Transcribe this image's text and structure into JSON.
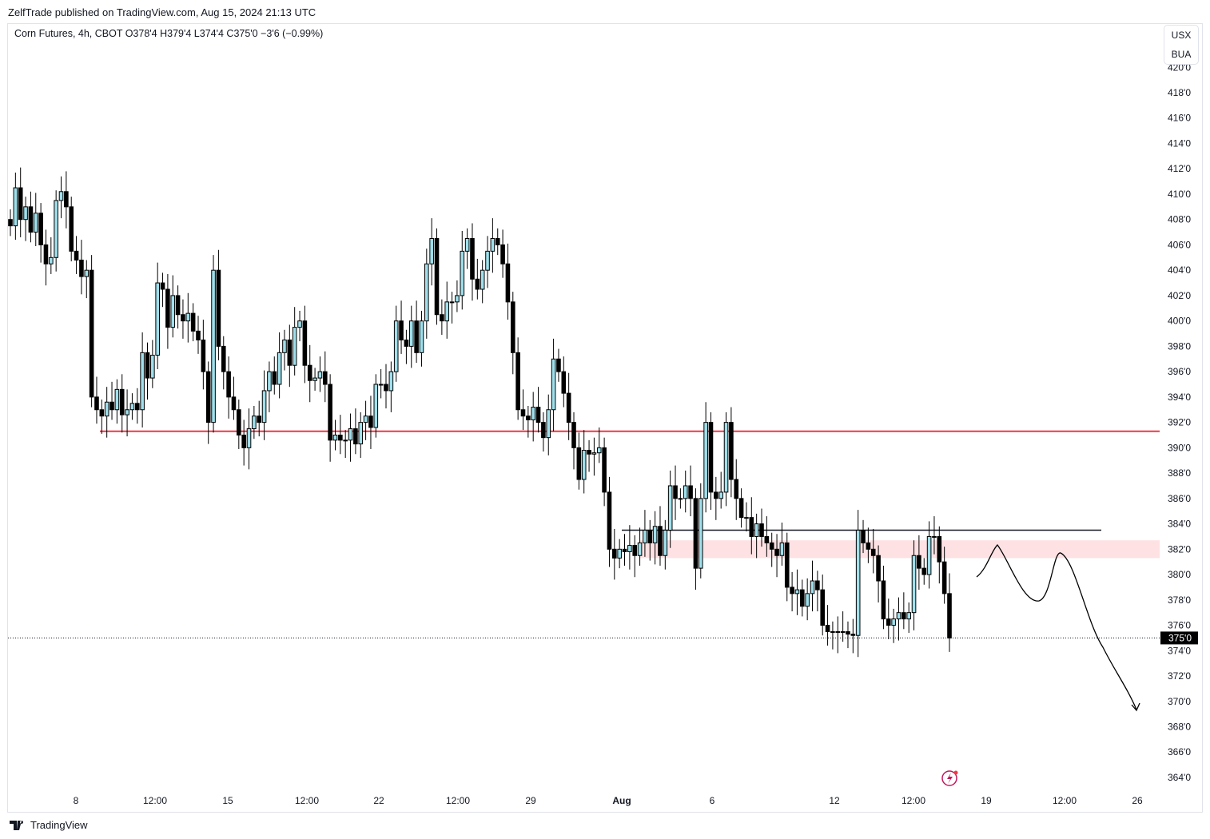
{
  "publisher_line": "ZelfTrade published on TradingView.com, Aug 15, 2024 21:13 UTC",
  "legend": "Corn Futures, 4h, CBOT  O378'4  H379'4  L374'4  C375'0  −3'6 (−0.99%)",
  "units": [
    "USX",
    "BUA"
  ],
  "brand": "TradingView",
  "colors": {
    "up": "#9fe0ec",
    "down": "#000000",
    "resistance": "#f23645",
    "zone": "#fde1e3",
    "level": "#131722"
  },
  "chart_data": {
    "type": "candlestick",
    "title": "Corn Futures, 4h, CBOT",
    "ylim": [
      363,
      421
    ],
    "y_ticks": [
      "420'0",
      "418'0",
      "416'0",
      "414'0",
      "412'0",
      "410'0",
      "408'0",
      "406'0",
      "404'0",
      "402'0",
      "400'0",
      "398'0",
      "396'0",
      "394'0",
      "392'0",
      "390'0",
      "388'0",
      "386'0",
      "384'0",
      "382'0",
      "380'0",
      "378'0",
      "376'0",
      "374'0",
      "372'0",
      "370'0",
      "368'0",
      "366'0",
      "364'0"
    ],
    "x_ticks": [
      "8",
      "12:00",
      "15",
      "12:00",
      "22",
      "12:00",
      "29",
      "Aug",
      "6",
      "12",
      "12:00",
      "19",
      "12:00",
      "26"
    ],
    "first_open": 408,
    "closes": [
      407.5,
      410.5,
      408,
      409,
      407,
      408.5,
      406,
      404.5,
      405,
      409.5,
      410.2,
      409,
      405.5,
      404.8,
      403.5,
      404,
      394,
      393,
      392.5,
      393.6,
      393,
      394.6,
      392.6,
      393,
      393.5,
      393,
      397.5,
      395.5,
      397.3,
      403,
      402.5,
      399.5,
      402,
      400.5,
      400,
      400.6,
      399.2,
      398.5,
      396,
      392,
      404,
      398,
      396,
      394,
      393,
      391,
      390,
      391.5,
      392.5,
      392,
      394.5,
      396,
      395,
      397.5,
      398.5,
      396.5,
      399.5,
      400,
      396.5,
      395.3,
      395.5,
      396,
      395,
      390.6,
      391,
      390.6,
      390.6,
      391.5,
      390.3,
      392,
      392.5,
      391.6,
      395,
      395,
      394.5,
      396,
      400,
      398.5,
      398,
      400,
      397.5,
      400,
      404.5,
      406.5,
      400.5,
      400,
      401.5,
      401.5,
      402,
      405.5,
      406.5,
      403.3,
      402.5,
      404,
      405.5,
      406.5,
      406,
      404.5,
      401.5,
      397.5,
      393,
      392.5,
      392.2,
      393.2,
      392,
      390.8,
      393,
      397,
      396,
      394.3,
      392,
      390,
      387.5,
      389.8,
      389.5,
      389.6,
      390,
      386.5,
      382,
      381.3,
      382,
      381.8,
      382.3,
      381.5,
      382.5,
      383.5,
      382.5,
      383.8,
      381.5,
      383.5,
      387,
      386,
      386,
      387,
      386,
      380.5,
      386,
      392,
      386.5,
      386,
      386.5,
      392,
      387.5,
      386,
      384.5,
      384.5,
      383,
      384,
      383,
      382.5,
      382,
      381.5,
      382.5,
      379,
      378.5,
      378.8,
      377.5,
      378.5,
      379.5,
      378.8,
      376,
      375.5,
      375.5,
      375.5,
      375.5,
      375.3,
      375.2,
      383.5,
      382.5,
      382,
      381.5,
      379.5,
      376.5,
      376,
      376.5,
      377,
      376.5,
      377,
      381.5,
      380.5,
      380,
      383,
      383,
      381,
      378.5,
      375
    ],
    "last_price": "375'0",
    "resistance_level": 391.3,
    "horizontal_level": 383.5,
    "supply_zone": [
      381.3,
      382.7
    ]
  }
}
